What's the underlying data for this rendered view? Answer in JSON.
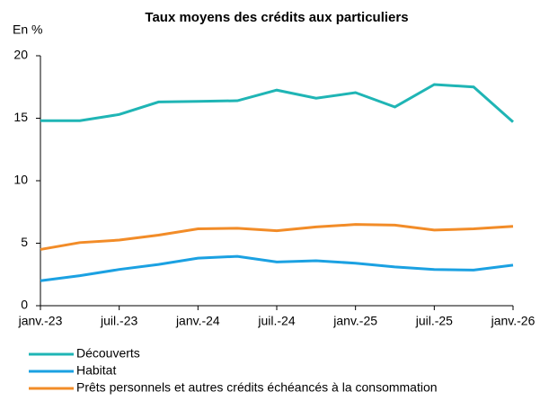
{
  "chart_data": {
    "type": "line",
    "title": "Taux moyens des crédits aux particuliers",
    "y_label": "En %",
    "categories": [
      "janv.-23",
      null,
      "juil.-23",
      null,
      "janv.-24",
      null,
      "juil.-24",
      null,
      "janv.-25",
      null,
      "juil.-25",
      null,
      "janv.-26"
    ],
    "series": [
      {
        "name": "Découverts",
        "color": "#1fb5b5",
        "values": [
          14.8,
          14.8,
          15.3,
          16.3,
          16.35,
          16.4,
          17.25,
          16.6,
          17.05,
          15.9,
          17.7,
          17.5,
          14.7
        ]
      },
      {
        "name": "Habitat",
        "color": "#1ba1e2",
        "values": [
          2.0,
          2.4,
          2.9,
          3.3,
          3.8,
          3.95,
          3.5,
          3.6,
          3.4,
          3.1,
          2.9,
          2.85,
          3.25
        ]
      },
      {
        "name": "Prêts personnels et autres crédits échéancés à la consommation",
        "color": "#f28c28",
        "values": [
          4.5,
          5.05,
          5.25,
          5.65,
          6.15,
          6.2,
          6.0,
          6.3,
          6.5,
          6.45,
          6.05,
          6.15,
          6.35
        ]
      }
    ],
    "ylim": [
      0,
      20
    ],
    "yticks": [
      0,
      5,
      10,
      15,
      20
    ],
    "grid": false,
    "legend": "bottom"
  }
}
